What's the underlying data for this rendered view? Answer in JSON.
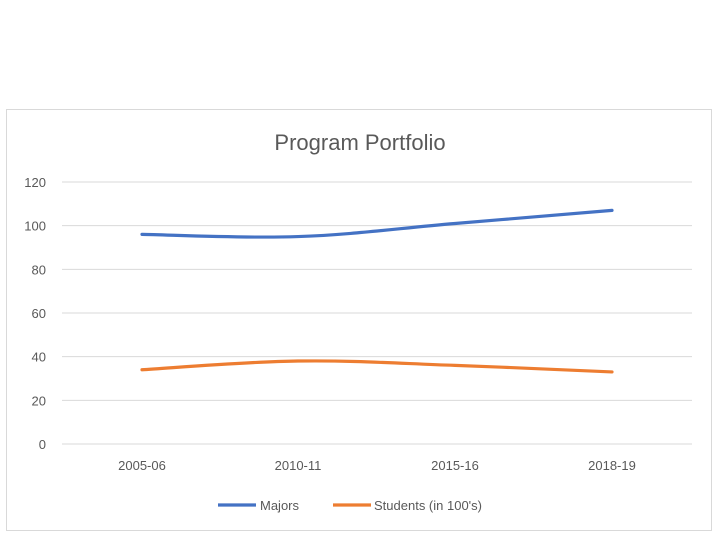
{
  "chart_data": {
    "type": "line",
    "title": "Program Portfolio",
    "categories": [
      "2005-06",
      "2010-11",
      "2015-16",
      "2018-19"
    ],
    "series": [
      {
        "name": "Majors",
        "values": [
          96,
          95,
          101,
          107
        ],
        "color": "#4472c4"
      },
      {
        "name": "Students (in 100's)",
        "values": [
          34,
          38,
          36,
          33
        ],
        "color": "#ed7d31"
      }
    ],
    "yticks": [
      "0",
      "20",
      "40",
      "60",
      "80",
      "100",
      "120"
    ],
    "ylim": [
      0,
      120
    ],
    "grid": true,
    "legend": "bottom",
    "xlabel": "",
    "ylabel": ""
  }
}
